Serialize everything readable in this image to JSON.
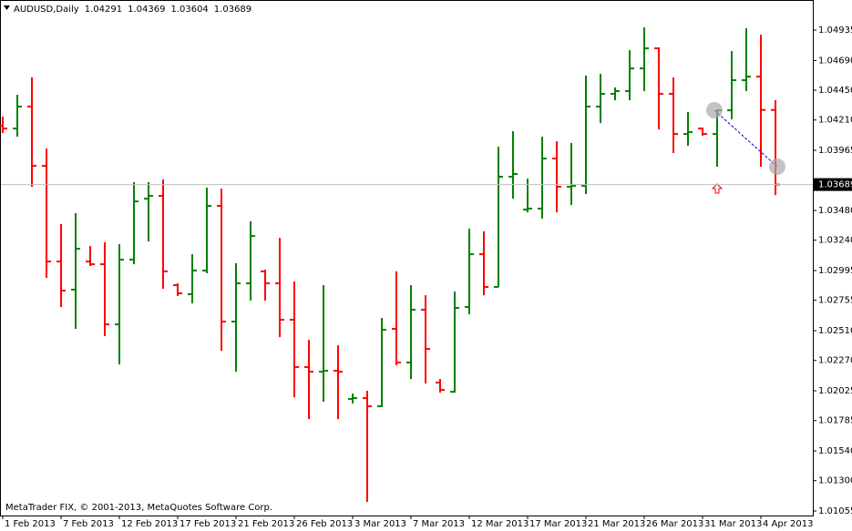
{
  "chart_data": {
    "type": "ohlc",
    "title": "AUDUSD,Daily",
    "copyright": "MetaTrader FIX, © 2001-2013, MetaQuotes Software Corp.",
    "categories": [
      "1 Feb 2013",
      null,
      null,
      null,
      "7 Feb 2013",
      null,
      null,
      null,
      "12 Feb 2013",
      null,
      null,
      null,
      "17 Feb 2013",
      null,
      null,
      null,
      "21 Feb 2013",
      null,
      null,
      null,
      "26 Feb 2013",
      null,
      null,
      null,
      "3 Mar 2013",
      null,
      null,
      null,
      "7 Mar 2013",
      null,
      null,
      null,
      "12 Mar 2013",
      null,
      null,
      null,
      "17 Mar 2013",
      null,
      null,
      null,
      "21 Mar 2013",
      null,
      null,
      null,
      "26 Mar 2013",
      null,
      null,
      null,
      "31 Mar 2013",
      null,
      null,
      null,
      "4 Apr 2013",
      null
    ],
    "open": [
      1.04163,
      1.04141,
      1.04318,
      1.0384,
      1.03068,
      1.02841,
      1.03068,
      1.03046,
      1.02561,
      1.03083,
      1.03575,
      1.03598,
      1.02877,
      1.02804,
      1.02995,
      1.03517,
      1.02583,
      1.02892,
      1.02988,
      1.02892,
      1.02598,
      1.02216,
      1.02179,
      1.02187,
      1.01959,
      1.01966,
      1.019,
      1.02525,
      1.02253,
      1.02679,
      1.02091,
      1.02017,
      1.02701,
      1.03127,
      1.02863,
      1.03752,
      1.03487,
      1.03495,
      1.03899,
      1.03671,
      1.03678,
      1.04318,
      1.04421,
      1.04443,
      1.04626,
      1.04788,
      1.04421,
      1.04097,
      1.04141,
      1.04097,
      1.04288,
      1.04531,
      1.0456,
      1.04291
    ],
    "high": [
      1.04237,
      1.04413,
      1.04553,
      1.0398,
      1.0337,
      1.03458,
      1.03193,
      1.03223,
      1.03208,
      1.03708,
      1.03708,
      1.0373,
      1.02892,
      1.03127,
      1.03664,
      1.03656,
      1.03054,
      1.03392,
      1.03002,
      1.03259,
      1.02907,
      1.02436,
      1.02877,
      1.02392,
      1.02003,
      1.02025,
      1.02613,
      1.02988,
      1.02877,
      1.02796,
      1.0212,
      1.02826,
      1.03333,
      1.03311,
      1.03994,
      1.04119,
      1.03737,
      1.04075,
      1.04038,
      1.04024,
      1.04568,
      1.04582,
      1.04472,
      1.04773,
      1.04957,
      1.04795,
      1.04553,
      1.04274,
      1.04149,
      1.04296,
      1.04766,
      1.0495,
      1.04898,
      1.04369
    ],
    "low": [
      1.04105,
      1.04075,
      1.03671,
      1.02936,
      1.02701,
      1.02525,
      1.03032,
      1.02466,
      1.02238,
      1.03046,
      1.0323,
      1.02848,
      1.02789,
      1.0273,
      1.02973,
      1.02348,
      1.02179,
      1.02752,
      1.02752,
      1.02458,
      1.01973,
      1.01797,
      1.01937,
      1.01797,
      1.01922,
      1.01128,
      1.01893,
      1.02231,
      1.0212,
      1.02084,
      1.0201,
      1.0201,
      1.02642,
      1.02796,
      1.02863,
      1.03575,
      1.03465,
      1.03414,
      1.03465,
      1.03524,
      1.03612,
      1.04185,
      1.04369,
      1.04369,
      1.04443,
      1.04134,
      1.03943,
      1.04002,
      1.04083,
      1.03833,
      1.04215,
      1.04443,
      1.03833,
      1.03604
    ],
    "close": [
      1.04141,
      1.04318,
      1.0384,
      1.03068,
      1.02833,
      1.03171,
      1.03046,
      1.02561,
      1.03083,
      1.03553,
      1.03598,
      1.02988,
      1.02811,
      1.02995,
      1.03517,
      1.02583,
      1.02892,
      1.03274,
      1.02892,
      1.02598,
      1.02216,
      1.02179,
      1.02187,
      1.02179,
      1.01966,
      1.019,
      1.02517,
      1.02253,
      1.02679,
      1.02363,
      1.02032,
      1.02694,
      1.03127,
      1.02863,
      1.03752,
      1.03774,
      1.03495,
      1.03899,
      1.03671,
      1.03678,
      1.04318,
      1.04421,
      1.04443,
      1.04626,
      1.04788,
      1.04421,
      1.04097,
      1.04112,
      1.04097,
      1.04288,
      1.04531,
      1.0456,
      1.04291,
      1.03689
    ],
    "up_color": "#008000",
    "down_color": "#ff0000",
    "current_price": 1.03689,
    "ylim": [
      1.01026,
      1.05178
    ],
    "yticks": [
      1.04935,
      {
        "value": 1.0469,
        "label": "1.04690"
      },
      {
        "value": 1.0445,
        "label": "1.04450"
      },
      {
        "value": 1.0421,
        "label": "1.04210"
      },
      1.03965,
      {
        "value": 1.0348,
        "label": "1.03480"
      },
      {
        "value": 1.0324,
        "label": "1.03240"
      },
      1.02995,
      1.02755,
      {
        "value": 1.0251,
        "label": "1.02510"
      },
      {
        "value": 1.0227,
        "label": "1.02270"
      },
      1.02025,
      1.01785,
      {
        "value": 1.0154,
        "label": "1.01540"
      },
      {
        "value": 1.013,
        "label": "1.01300"
      },
      1.01055
    ]
  }
}
